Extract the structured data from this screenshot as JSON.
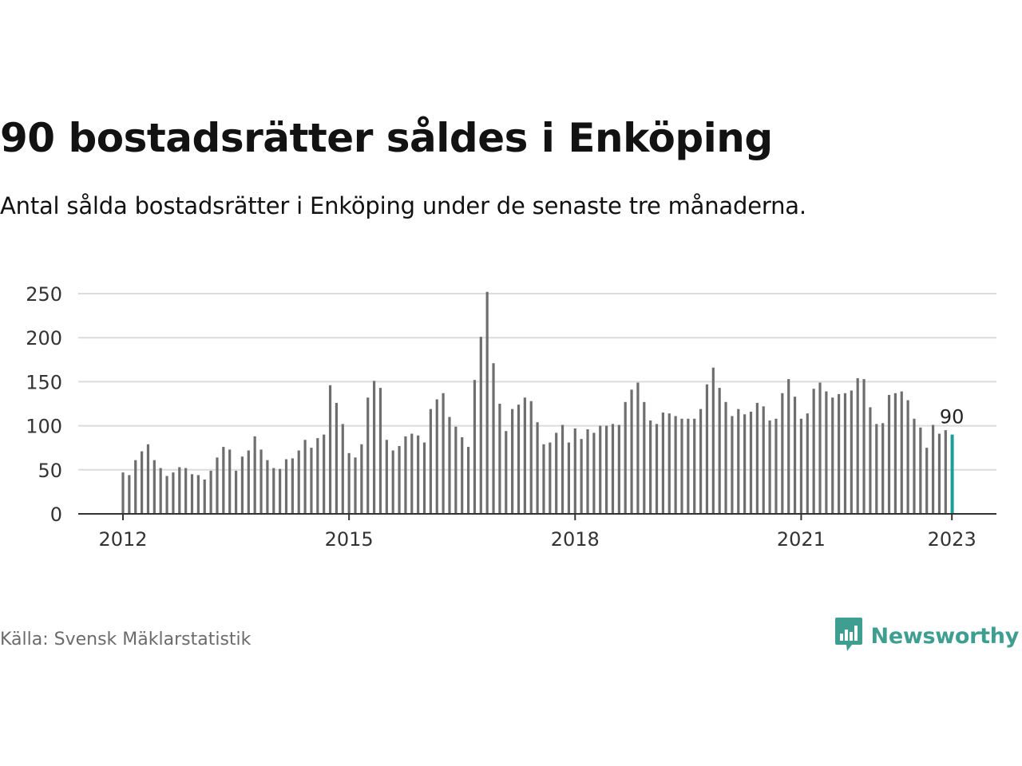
{
  "header": {
    "title": "90 bostadsrätter såldes i Enköping",
    "subtitle": "Antal sålda bostadsrätter i Enköping under de senaste tre månaderna."
  },
  "footer": {
    "source": "Källa: Svensk Mäklarstatistik",
    "brand": "Newsworthy"
  },
  "colors": {
    "bar": "#6e6e6e",
    "highlight": "#1a9e96",
    "grid": "#dcdcdc",
    "axis": "#333333",
    "brand": "#3e9e90"
  },
  "icons": {
    "brand_logo": "newsworthy-logo-icon"
  },
  "chart_data": {
    "type": "bar",
    "title": "90 bostadsrätter såldes i Enköping",
    "subtitle": "Antal sålda bostadsrätter i Enköping under de senaste tre månaderna.",
    "xlabel": "",
    "ylabel": "",
    "ylim": [
      0,
      250
    ],
    "yticks": [
      0,
      50,
      100,
      150,
      200,
      250
    ],
    "xticks": [
      "2012",
      "2015",
      "2018",
      "2021",
      "2023"
    ],
    "grid": true,
    "legend": "none",
    "highlight_label": "90",
    "x": [
      "2012-01",
      "2012-02",
      "2012-03",
      "2012-04",
      "2012-05",
      "2012-06",
      "2012-07",
      "2012-08",
      "2012-09",
      "2012-10",
      "2012-11",
      "2012-12",
      "2013-01",
      "2013-02",
      "2013-03",
      "2013-04",
      "2013-05",
      "2013-06",
      "2013-07",
      "2013-08",
      "2013-09",
      "2013-10",
      "2013-11",
      "2013-12",
      "2014-01",
      "2014-02",
      "2014-03",
      "2014-04",
      "2014-05",
      "2014-06",
      "2014-07",
      "2014-08",
      "2014-09",
      "2014-10",
      "2014-11",
      "2014-12",
      "2015-01",
      "2015-02",
      "2015-03",
      "2015-04",
      "2015-05",
      "2015-06",
      "2015-07",
      "2015-08",
      "2015-09",
      "2015-10",
      "2015-11",
      "2015-12",
      "2016-01",
      "2016-02",
      "2016-03",
      "2016-04",
      "2016-05",
      "2016-06",
      "2016-07",
      "2016-08",
      "2016-09",
      "2016-10",
      "2016-11",
      "2016-12",
      "2017-01",
      "2017-02",
      "2017-03",
      "2017-04",
      "2017-05",
      "2017-06",
      "2017-07",
      "2017-08",
      "2017-09",
      "2017-10",
      "2017-11",
      "2017-12",
      "2018-01",
      "2018-02",
      "2018-03",
      "2018-04",
      "2018-05",
      "2018-06",
      "2018-07",
      "2018-08",
      "2018-09",
      "2018-10",
      "2018-11",
      "2018-12",
      "2019-01",
      "2019-02",
      "2019-03",
      "2019-04",
      "2019-05",
      "2019-06",
      "2019-07",
      "2019-08",
      "2019-09",
      "2019-10",
      "2019-11",
      "2019-12",
      "2020-01",
      "2020-02",
      "2020-03",
      "2020-04",
      "2020-05",
      "2020-06",
      "2020-07",
      "2020-08",
      "2020-09",
      "2020-10",
      "2020-11",
      "2020-12",
      "2021-01",
      "2021-02",
      "2021-03",
      "2021-04",
      "2021-05",
      "2021-06",
      "2021-07",
      "2021-08",
      "2021-09",
      "2021-10",
      "2021-11",
      "2021-12",
      "2022-01",
      "2022-02",
      "2022-03",
      "2022-04",
      "2022-05",
      "2022-06",
      "2022-07",
      "2022-08",
      "2022-09",
      "2022-10",
      "2022-11",
      "2022-12",
      "2023-01"
    ],
    "values": [
      47,
      44,
      61,
      71,
      79,
      61,
      52,
      43,
      47,
      53,
      52,
      45,
      44,
      39,
      49,
      64,
      76,
      73,
      49,
      65,
      72,
      88,
      73,
      61,
      52,
      51,
      62,
      63,
      72,
      84,
      75,
      86,
      90,
      146,
      126,
      102,
      69,
      64,
      79,
      132,
      151,
      143,
      84,
      72,
      77,
      88,
      91,
      89,
      81,
      119,
      130,
      137,
      110,
      99,
      87,
      76,
      152,
      201,
      252,
      171,
      125,
      94,
      119,
      124,
      132,
      128,
      104,
      79,
      81,
      92,
      101,
      81,
      97,
      85,
      96,
      92,
      100,
      100,
      102,
      101,
      127,
      141,
      149,
      127,
      106,
      102,
      115,
      114,
      111,
      108,
      108,
      108,
      119,
      147,
      166,
      143,
      127,
      111,
      119,
      113,
      116,
      126,
      122,
      106,
      108,
      137,
      153,
      133,
      108,
      114,
      142,
      149,
      139,
      132,
      136,
      137,
      140,
      154,
      153,
      121,
      102,
      103,
      135,
      137,
      139,
      129,
      108,
      98,
      75,
      101,
      91,
      95,
      90
    ]
  }
}
